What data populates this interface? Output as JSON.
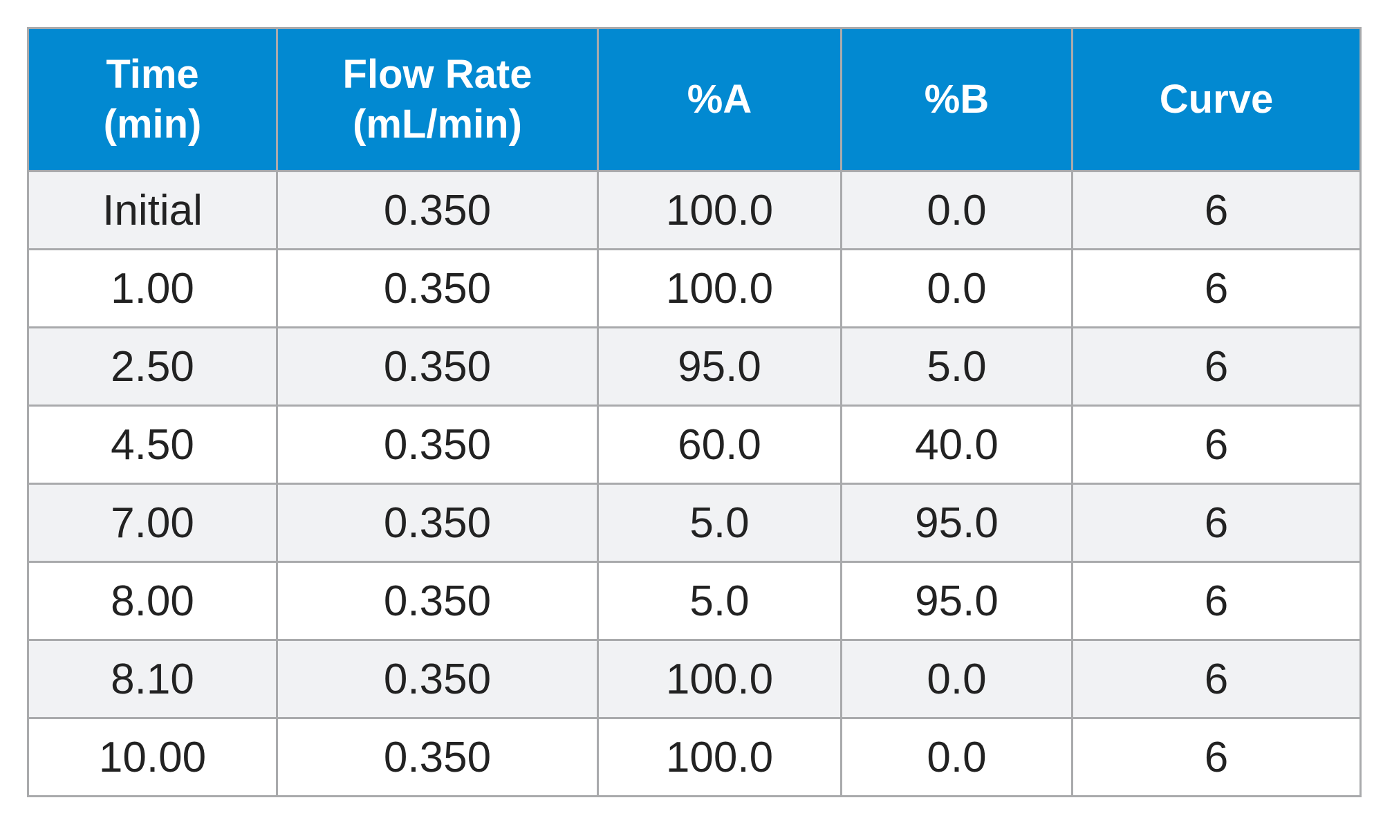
{
  "table": {
    "headers": [
      {
        "lines": [
          "Time",
          "(min)"
        ]
      },
      {
        "lines": [
          "Flow Rate",
          "(mL/min)"
        ]
      },
      {
        "lines": [
          "%A"
        ]
      },
      {
        "lines": [
          "%B"
        ]
      },
      {
        "lines": [
          "Curve"
        ]
      }
    ],
    "rows": [
      [
        "Initial",
        "0.350",
        "100.0",
        "0.0",
        "6"
      ],
      [
        "1.00",
        "0.350",
        "100.0",
        "0.0",
        "6"
      ],
      [
        "2.50",
        "0.350",
        "95.0",
        "5.0",
        "6"
      ],
      [
        "4.50",
        "0.350",
        "60.0",
        "40.0",
        "6"
      ],
      [
        "7.00",
        "0.350",
        "5.0",
        "95.0",
        "6"
      ],
      [
        "8.00",
        "0.350",
        "5.0",
        "95.0",
        "6"
      ],
      [
        "8.10",
        "0.350",
        "100.0",
        "0.0",
        "6"
      ],
      [
        "10.00",
        "0.350",
        "100.0",
        "0.0",
        "6"
      ]
    ]
  },
  "colors": {
    "header_background": "#0289d1",
    "header_text": "#ffffff",
    "row_shaded": "#f1f2f4",
    "row_plain": "#ffffff",
    "border": "#a9aaac"
  }
}
